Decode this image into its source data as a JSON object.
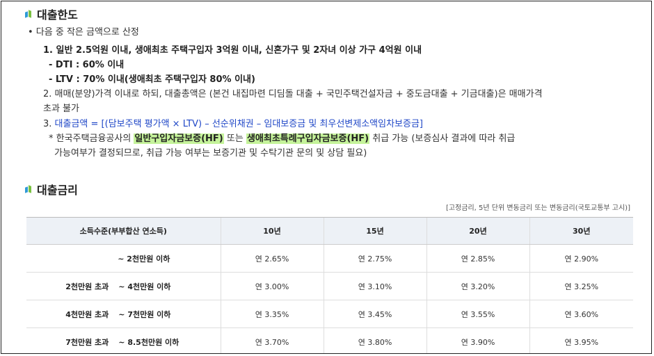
{
  "limit": {
    "title": "대출한도",
    "bullet": "• 다음 중 작은 금액으로 산정",
    "item1": "1. 일반 2.5억원 이내, 생애최초 주택구입자 3억원 이내, 신혼가구 및 2자녀 이상 가구 4억원 이내",
    "dti": "- DTI : 60% 이내",
    "ltv": "- LTV : 70% 이내(생애최초 주택구입자 80% 이내)",
    "item2_a": "2. 매매(분양)가격 이내로 하되, 대출총액은 (본건 내집마련 디딤돌 대출 + 국민주택건설자금 + 중도금대출 + 기금대출)은 매매가격",
    "item2_b": "초과 불가",
    "item3_prefix": "3. ",
    "item3_text": "대출금액 = [(담보주택 평가액 × LTV) – 선순위채권 – 임대보증금 및 최우선변제소액임차보증금]",
    "note_star": "*",
    "note_pre": "한국주택금융공사의 ",
    "note_hl1": "일반구입자금보증(HF)",
    "note_mid": " 또는 ",
    "note_hl2": "생애최초특례구입자금보증(HF)",
    "note_post": " 취급 가능 (보증심사 결과에 따라 취급",
    "note_line2": "가능여부가 결정되므로, 취급 가능 여부는 보증기관 및 수탁기관 문의 및 상담 필요)"
  },
  "rate": {
    "title": "대출금리",
    "note": "[고정금리, 5년 단위 변동금리 또는 변동금리(국토교통부 고시)]",
    "headers": [
      "소득수준(부부합산 연소득)",
      "10년",
      "15년",
      "20년",
      "30년"
    ],
    "rows": [
      {
        "lo": "",
        "hi": "~ 2천만원 이하",
        "values": [
          "연 2.65%",
          "연 2.75%",
          "연 2.85%",
          "연 2.90%"
        ]
      },
      {
        "lo": "2천만원 초과",
        "hi": "~ 4천만원 이하",
        "values": [
          "연 3.00%",
          "연 3.10%",
          "연 3.20%",
          "연 3.25%"
        ]
      },
      {
        "lo": "4천만원 초과",
        "hi": "~ 7천만원 이하",
        "values": [
          "연 3.35%",
          "연 3.45%",
          "연 3.55%",
          "연 3.60%"
        ]
      },
      {
        "lo": "7천만원 초과",
        "hi": "~ 8.5천만원 이하",
        "values": [
          "연 3.70%",
          "연 3.80%",
          "연 3.90%",
          "연 3.95%"
        ]
      }
    ]
  }
}
